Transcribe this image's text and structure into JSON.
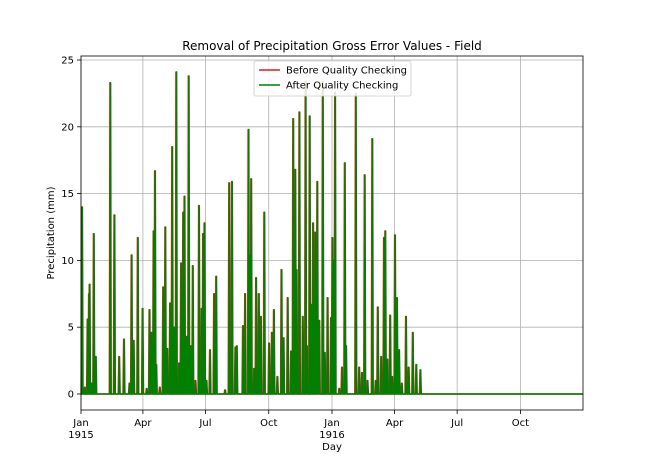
{
  "chart_data": {
    "type": "line",
    "title": "Removal of Precipitation Gross Error Values - Field",
    "xlabel": "Day",
    "ylabel": "Precipitation (mm)",
    "xlim": [
      "1915-01-01",
      "1916-12-31"
    ],
    "ylim": [
      -1.2,
      25.3
    ],
    "yticks": [
      0,
      5,
      10,
      15,
      20,
      25
    ],
    "xticks": [
      {
        "date": "1915-01-01",
        "label": "Jan",
        "sublabel": "1915"
      },
      {
        "date": "1915-04-01",
        "label": "Apr",
        "sublabel": ""
      },
      {
        "date": "1915-07-01",
        "label": "Jul",
        "sublabel": ""
      },
      {
        "date": "1915-10-01",
        "label": "Oct",
        "sublabel": ""
      },
      {
        "date": "1916-01-01",
        "label": "Jan",
        "sublabel": "1916"
      },
      {
        "date": "1916-04-01",
        "label": "Apr",
        "sublabel": ""
      },
      {
        "date": "1916-07-01",
        "label": "Jul",
        "sublabel": ""
      },
      {
        "date": "1916-10-01",
        "label": "Oct",
        "sublabel": ""
      }
    ],
    "grid": true,
    "legend_position": "upper-center",
    "series": [
      {
        "name": "Before Quality Checking",
        "color": "#e41a1c"
      },
      {
        "name": "After Quality Checking",
        "color": "#008000"
      }
    ],
    "spikes": [
      [
        "1915-01-03",
        14.0
      ],
      [
        "1915-01-07",
        0.5
      ],
      [
        "1915-01-11",
        5.6
      ],
      [
        "1915-01-13",
        7.5
      ],
      [
        "1915-01-14",
        8.2
      ],
      [
        "1915-01-17",
        0.8
      ],
      [
        "1915-01-20",
        12.0
      ],
      [
        "1915-01-23",
        2.8
      ],
      [
        "1915-02-13",
        23.3
      ],
      [
        "1915-02-19",
        13.4
      ],
      [
        "1915-02-26",
        2.8
      ],
      [
        "1915-03-05",
        4.1
      ],
      [
        "1915-03-13",
        0.8
      ],
      [
        "1915-03-16",
        10.4
      ],
      [
        "1915-03-19",
        4.0
      ],
      [
        "1915-03-25",
        11.7
      ],
      [
        "1915-04-01",
        6.4
      ],
      [
        "1915-04-07",
        0.4
      ],
      [
        "1915-04-11",
        6.3
      ],
      [
        "1915-04-14",
        4.6
      ],
      [
        "1915-04-17",
        12.2
      ],
      [
        "1915-04-19",
        16.7
      ],
      [
        "1915-04-21",
        2.2
      ],
      [
        "1915-04-26",
        0.5
      ],
      [
        "1915-05-01",
        8.0
      ],
      [
        "1915-05-04",
        12.5
      ],
      [
        "1915-05-07",
        3.4
      ],
      [
        "1915-05-11",
        6.8
      ],
      [
        "1915-05-14",
        18.5
      ],
      [
        "1915-05-17",
        5.0
      ],
      [
        "1915-05-20",
        24.1
      ],
      [
        "1915-05-24",
        2.3
      ],
      [
        "1915-05-27",
        9.8
      ],
      [
        "1915-05-30",
        13.6
      ],
      [
        "1915-06-01",
        14.8
      ],
      [
        "1915-06-04",
        4.3
      ],
      [
        "1915-06-07",
        23.8
      ],
      [
        "1915-06-10",
        3.6
      ],
      [
        "1915-06-13",
        9.6
      ],
      [
        "1915-06-17",
        1.0
      ],
      [
        "1915-06-22",
        14.1
      ],
      [
        "1915-06-26",
        6.4
      ],
      [
        "1915-06-28",
        12.0
      ],
      [
        "1915-06-30",
        12.8
      ],
      [
        "1915-07-03",
        1.0
      ],
      [
        "1915-07-08",
        3.3
      ],
      [
        "1915-07-14",
        7.5
      ],
      [
        "1915-07-17",
        8.8
      ],
      [
        "1915-07-30",
        0.3
      ],
      [
        "1915-08-05",
        15.8
      ],
      [
        "1915-08-09",
        15.9
      ],
      [
        "1915-08-14",
        3.5
      ],
      [
        "1915-08-16",
        3.6
      ],
      [
        "1915-08-25",
        5.1
      ],
      [
        "1915-08-28",
        7.5
      ],
      [
        "1915-09-02",
        19.8
      ],
      [
        "1915-09-04",
        10.4
      ],
      [
        "1915-09-06",
        16.1
      ],
      [
        "1915-09-10",
        1.9
      ],
      [
        "1915-09-13",
        8.7
      ],
      [
        "1915-09-17",
        7.5
      ],
      [
        "1915-09-20",
        5.8
      ],
      [
        "1915-09-25",
        13.6
      ],
      [
        "1915-10-02",
        3.8
      ],
      [
        "1915-10-06",
        4.6
      ],
      [
        "1915-10-09",
        6.3
      ],
      [
        "1915-10-14",
        1.3
      ],
      [
        "1915-10-20",
        9.3
      ],
      [
        "1915-10-23",
        4.2
      ],
      [
        "1915-10-29",
        7.2
      ],
      [
        "1915-11-03",
        3.2
      ],
      [
        "1915-11-06",
        20.6
      ],
      [
        "1915-11-09",
        16.8
      ],
      [
        "1915-11-11",
        9.3
      ],
      [
        "1915-11-15",
        21.1
      ],
      [
        "1915-11-20",
        5.8
      ],
      [
        "1915-11-24",
        23.4
      ],
      [
        "1915-11-26",
        3.6
      ],
      [
        "1915-11-30",
        20.8
      ],
      [
        "1915-12-02",
        6.7
      ],
      [
        "1915-12-05",
        12.8
      ],
      [
        "1915-12-08",
        12.1
      ],
      [
        "1915-12-11",
        15.9
      ],
      [
        "1915-12-14",
        5.5
      ],
      [
        "1915-12-19",
        23.4
      ],
      [
        "1915-12-22",
        3.1
      ],
      [
        "1915-12-26",
        7.2
      ],
      [
        "1915-12-31",
        5.7
      ],
      [
        "1916-01-02",
        11.7
      ],
      [
        "1916-01-04",
        10.0
      ],
      [
        "1916-01-06",
        22.6
      ],
      [
        "1916-01-12",
        0.4
      ],
      [
        "1916-01-16",
        2.0
      ],
      [
        "1916-01-20",
        17.3
      ],
      [
        "1916-01-22",
        3.6
      ],
      [
        "1916-02-05",
        22.5
      ],
      [
        "1916-02-10",
        2.0
      ],
      [
        "1916-02-14",
        1.6
      ],
      [
        "1916-02-18",
        16.4
      ],
      [
        "1916-02-22",
        1.0
      ],
      [
        "1916-02-29",
        19.1
      ],
      [
        "1916-03-05",
        1.0
      ],
      [
        "1916-03-08",
        6.5
      ],
      [
        "1916-03-13",
        2.8
      ],
      [
        "1916-03-17",
        11.7
      ],
      [
        "1916-03-19",
        12.2
      ],
      [
        "1916-03-22",
        2.6
      ],
      [
        "1916-03-26",
        5.9
      ],
      [
        "1916-03-29",
        1.3
      ],
      [
        "1916-04-02",
        11.9
      ],
      [
        "1916-04-05",
        7.2
      ],
      [
        "1916-04-08",
        3.3
      ],
      [
        "1916-04-12",
        0.8
      ],
      [
        "1916-04-18",
        5.8
      ],
      [
        "1916-04-22",
        2.0
      ],
      [
        "1916-04-28",
        4.6
      ],
      [
        "1916-05-03",
        2.2
      ],
      [
        "1916-05-09",
        1.8
      ]
    ]
  }
}
